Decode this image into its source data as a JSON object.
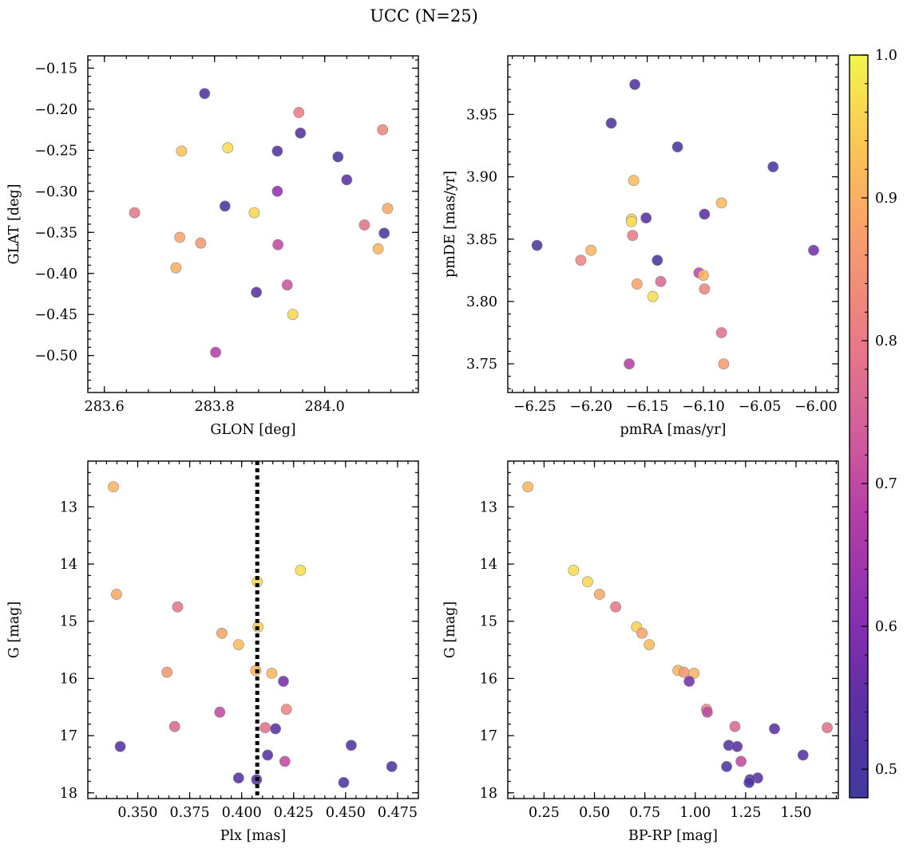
{
  "figure": {
    "title": "UCC (N=25)"
  },
  "colorbar": {
    "cmap": "plasma",
    "range": [
      0.48,
      1.0
    ],
    "ticks": [
      0.5,
      0.6,
      0.7,
      0.8,
      0.9,
      1.0
    ],
    "tick_labels": [
      "0.5",
      "0.6",
      "0.7",
      "0.8",
      "0.9",
      "1.0"
    ]
  },
  "chart_data": [
    {
      "type": "scatter",
      "xlabel": "GLON [deg]",
      "ylabel": "GLAT [deg]",
      "xlim": [
        283.57,
        284.17
      ],
      "ylim": [
        -0.545,
        -0.135
      ],
      "x_ticks": [
        283.6,
        283.8,
        284.0
      ],
      "x_tick_labels": [
        "283.6",
        "283.8",
        "284.0"
      ],
      "y_ticks": [
        -0.5,
        -0.45,
        -0.4,
        -0.35,
        -0.3,
        -0.25,
        -0.2,
        -0.15
      ],
      "y_tick_labels": [
        "−0.50",
        "−0.45",
        "−0.40",
        "−0.35",
        "−0.30",
        "−0.25",
        "−0.20",
        "−0.15"
      ],
      "invert_y": false,
      "points": [
        {
          "x": 283.782,
          "y": -0.181,
          "c": 0.52
        },
        {
          "x": 283.953,
          "y": -0.204,
          "c": 0.8
        },
        {
          "x": 284.105,
          "y": -0.225,
          "c": 0.82
        },
        {
          "x": 283.956,
          "y": -0.229,
          "c": 0.53
        },
        {
          "x": 283.74,
          "y": -0.251,
          "c": 0.93
        },
        {
          "x": 283.824,
          "y": -0.247,
          "c": 0.97
        },
        {
          "x": 283.914,
          "y": -0.251,
          "c": 0.53
        },
        {
          "x": 284.024,
          "y": -0.258,
          "c": 0.5
        },
        {
          "x": 284.04,
          "y": -0.286,
          "c": 0.54
        },
        {
          "x": 283.914,
          "y": -0.3,
          "c": 0.62
        },
        {
          "x": 283.819,
          "y": -0.318,
          "c": 0.5
        },
        {
          "x": 283.655,
          "y": -0.326,
          "c": 0.79
        },
        {
          "x": 283.872,
          "y": -0.326,
          "c": 0.96
        },
        {
          "x": 284.114,
          "y": -0.321,
          "c": 0.89
        },
        {
          "x": 284.072,
          "y": -0.341,
          "c": 0.78
        },
        {
          "x": 283.737,
          "y": -0.356,
          "c": 0.88
        },
        {
          "x": 283.775,
          "y": -0.363,
          "c": 0.86
        },
        {
          "x": 283.915,
          "y": -0.365,
          "c": 0.7
        },
        {
          "x": 284.108,
          "y": -0.351,
          "c": 0.51
        },
        {
          "x": 284.097,
          "y": -0.37,
          "c": 0.91
        },
        {
          "x": 283.73,
          "y": -0.393,
          "c": 0.9
        },
        {
          "x": 283.932,
          "y": -0.414,
          "c": 0.72
        },
        {
          "x": 283.876,
          "y": -0.423,
          "c": 0.53
        },
        {
          "x": 283.942,
          "y": -0.45,
          "c": 0.96
        },
        {
          "x": 283.802,
          "y": -0.496,
          "c": 0.68
        }
      ]
    },
    {
      "type": "scatter",
      "xlabel": "pmRA [mas/yr]",
      "ylabel": "pmDE [mas/yr]",
      "xlim": [
        -6.274,
        -5.98
      ],
      "ylim": [
        3.727,
        3.997
      ],
      "x_ticks": [
        -6.25,
        -6.2,
        -6.15,
        -6.1,
        -6.05,
        -6.0
      ],
      "x_tick_labels": [
        "−6.25",
        "−6.20",
        "−6.15",
        "−6.10",
        "−6.05",
        "−6.00"
      ],
      "y_ticks": [
        3.75,
        3.8,
        3.85,
        3.9,
        3.95
      ],
      "y_tick_labels": [
        "3.75",
        "3.80",
        "3.85",
        "3.90",
        "3.95"
      ],
      "invert_y": false,
      "points": [
        {
          "x": -6.161,
          "y": 3.974,
          "c": 0.53
        },
        {
          "x": -6.182,
          "y": 3.943,
          "c": 0.51
        },
        {
          "x": -6.123,
          "y": 3.924,
          "c": 0.5
        },
        {
          "x": -6.038,
          "y": 3.908,
          "c": 0.5
        },
        {
          "x": -6.162,
          "y": 3.897,
          "c": 0.92
        },
        {
          "x": -6.084,
          "y": 3.879,
          "c": 0.92
        },
        {
          "x": -6.151,
          "y": 3.867,
          "c": 0.53
        },
        {
          "x": -6.099,
          "y": 3.87,
          "c": 0.54
        },
        {
          "x": -6.164,
          "y": 3.866,
          "c": 0.95
        },
        {
          "x": -6.164,
          "y": 3.864,
          "c": 0.97
        },
        {
          "x": -6.163,
          "y": 3.853,
          "c": 0.8
        },
        {
          "x": -6.248,
          "y": 3.845,
          "c": 0.51
        },
        {
          "x": -6.2,
          "y": 3.841,
          "c": 0.91
        },
        {
          "x": -6.209,
          "y": 3.833,
          "c": 0.82
        },
        {
          "x": -6.141,
          "y": 3.833,
          "c": 0.5
        },
        {
          "x": -6.002,
          "y": 3.841,
          "c": 0.58
        },
        {
          "x": -6.104,
          "y": 3.823,
          "c": 0.7
        },
        {
          "x": -6.1,
          "y": 3.821,
          "c": 0.91
        },
        {
          "x": -6.138,
          "y": 3.816,
          "c": 0.76
        },
        {
          "x": -6.159,
          "y": 3.814,
          "c": 0.88
        },
        {
          "x": -6.099,
          "y": 3.81,
          "c": 0.82
        },
        {
          "x": -6.145,
          "y": 3.804,
          "c": 0.97
        },
        {
          "x": -6.084,
          "y": 3.775,
          "c": 0.78
        },
        {
          "x": -6.166,
          "y": 3.75,
          "c": 0.68
        },
        {
          "x": -6.082,
          "y": 3.75,
          "c": 0.87
        }
      ]
    },
    {
      "type": "scatter",
      "xlabel": "Plx [mas]",
      "ylabel": "G [mag]",
      "xlim": [
        0.326,
        0.485
      ],
      "ylim": [
        12.2,
        18.1
      ],
      "x_ticks": [
        0.35,
        0.375,
        0.4,
        0.425,
        0.45,
        0.475
      ],
      "x_tick_labels": [
        "0.350",
        "0.375",
        "0.400",
        "0.425",
        "0.450",
        "0.475"
      ],
      "y_ticks": [
        13,
        14,
        15,
        16,
        17,
        18
      ],
      "y_tick_labels": [
        "13",
        "14",
        "15",
        "16",
        "17",
        "18"
      ],
      "invert_y": true,
      "vline": {
        "x": 0.4075,
        "style": "dotted"
      },
      "points": [
        {
          "x": 0.3383,
          "y": 12.65,
          "c": 0.91
        },
        {
          "x": 0.4283,
          "y": 14.11,
          "c": 0.97
        },
        {
          "x": 0.4075,
          "y": 14.31,
          "c": 0.96
        },
        {
          "x": 0.3398,
          "y": 14.53,
          "c": 0.89
        },
        {
          "x": 0.3692,
          "y": 14.75,
          "c": 0.79
        },
        {
          "x": 0.4079,
          "y": 15.1,
          "c": 0.95
        },
        {
          "x": 0.3905,
          "y": 15.21,
          "c": 0.88
        },
        {
          "x": 0.3985,
          "y": 15.41,
          "c": 0.92
        },
        {
          "x": 0.4068,
          "y": 15.86,
          "c": 0.91
        },
        {
          "x": 0.3641,
          "y": 15.89,
          "c": 0.86
        },
        {
          "x": 0.4145,
          "y": 15.91,
          "c": 0.91
        },
        {
          "x": 0.4201,
          "y": 16.05,
          "c": 0.58
        },
        {
          "x": 0.4215,
          "y": 16.54,
          "c": 0.82
        },
        {
          "x": 0.3895,
          "y": 16.59,
          "c": 0.7
        },
        {
          "x": 0.3678,
          "y": 16.84,
          "c": 0.76
        },
        {
          "x": 0.4113,
          "y": 16.86,
          "c": 0.78
        },
        {
          "x": 0.4163,
          "y": 16.88,
          "c": 0.54
        },
        {
          "x": 0.4527,
          "y": 17.17,
          "c": 0.52
        },
        {
          "x": 0.3416,
          "y": 17.19,
          "c": 0.53
        },
        {
          "x": 0.4125,
          "y": 17.34,
          "c": 0.53
        },
        {
          "x": 0.4208,
          "y": 17.45,
          "c": 0.7
        },
        {
          "x": 0.4722,
          "y": 17.54,
          "c": 0.51
        },
        {
          "x": 0.3985,
          "y": 17.74,
          "c": 0.53
        },
        {
          "x": 0.4072,
          "y": 17.77,
          "c": 0.52
        },
        {
          "x": 0.4491,
          "y": 17.82,
          "c": 0.51
        }
      ]
    },
    {
      "type": "scatter",
      "xlabel": "BP-RP [mag]",
      "ylabel": "G [mag]",
      "xlim": [
        0.07,
        1.71
      ],
      "ylim": [
        12.2,
        18.1
      ],
      "x_ticks": [
        0.25,
        0.5,
        0.75,
        1.0,
        1.25,
        1.5
      ],
      "x_tick_labels": [
        "0.25",
        "0.50",
        "0.75",
        "1.00",
        "1.25",
        "1.50"
      ],
      "y_ticks": [
        13,
        14,
        15,
        16,
        17,
        18
      ],
      "y_tick_labels": [
        "13",
        "14",
        "15",
        "16",
        "17",
        "18"
      ],
      "invert_y": true,
      "points": [
        {
          "x": 0.17,
          "y": 12.65,
          "c": 0.91
        },
        {
          "x": 0.396,
          "y": 14.11,
          "c": 0.97
        },
        {
          "x": 0.466,
          "y": 14.31,
          "c": 0.96
        },
        {
          "x": 0.525,
          "y": 14.53,
          "c": 0.89
        },
        {
          "x": 0.605,
          "y": 14.75,
          "c": 0.79
        },
        {
          "x": 0.709,
          "y": 15.1,
          "c": 0.95
        },
        {
          "x": 0.736,
          "y": 15.21,
          "c": 0.88
        },
        {
          "x": 0.772,
          "y": 15.41,
          "c": 0.92
        },
        {
          "x": 0.914,
          "y": 15.86,
          "c": 0.91
        },
        {
          "x": 0.944,
          "y": 15.89,
          "c": 0.86
        },
        {
          "x": 0.994,
          "y": 15.91,
          "c": 0.91
        },
        {
          "x": 0.97,
          "y": 16.05,
          "c": 0.58
        },
        {
          "x": 1.056,
          "y": 16.54,
          "c": 0.82
        },
        {
          "x": 1.06,
          "y": 16.59,
          "c": 0.7
        },
        {
          "x": 1.197,
          "y": 16.84,
          "c": 0.76
        },
        {
          "x": 1.655,
          "y": 16.86,
          "c": 0.78
        },
        {
          "x": 1.393,
          "y": 16.88,
          "c": 0.54
        },
        {
          "x": 1.166,
          "y": 17.17,
          "c": 0.52
        },
        {
          "x": 1.208,
          "y": 17.19,
          "c": 0.53
        },
        {
          "x": 1.535,
          "y": 17.34,
          "c": 0.53
        },
        {
          "x": 1.227,
          "y": 17.45,
          "c": 0.7
        },
        {
          "x": 1.156,
          "y": 17.54,
          "c": 0.51
        },
        {
          "x": 1.31,
          "y": 17.74,
          "c": 0.53
        },
        {
          "x": 1.272,
          "y": 17.77,
          "c": 0.52
        },
        {
          "x": 1.267,
          "y": 17.82,
          "c": 0.51
        }
      ]
    }
  ]
}
